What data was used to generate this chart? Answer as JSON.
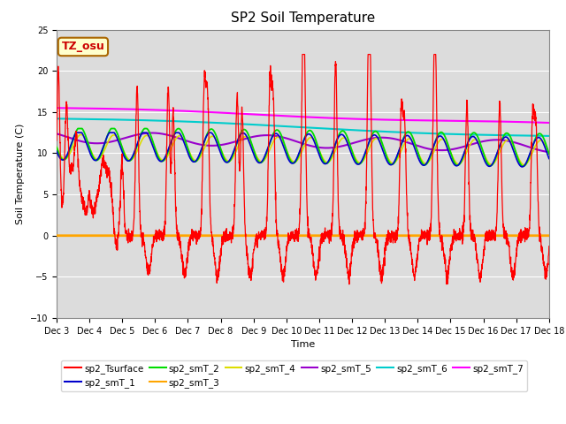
{
  "title": "SP2 Soil Temperature",
  "xlabel": "Time",
  "ylabel": "Soil Temperature (C)",
  "ylim": [
    -10,
    25
  ],
  "xlim": [
    0,
    15
  ],
  "xtick_labels": [
    "Dec 3",
    "Dec 4",
    "Dec 5",
    "Dec 6",
    "Dec 7",
    "Dec 8",
    "Dec 9",
    "Dec 10",
    "Dec 11",
    "Dec 12",
    "Dec 13",
    "Dec 14",
    "Dec 15",
    "Dec 16",
    "Dec 17",
    "Dec 18"
  ],
  "ytick_vals": [
    -10,
    -5,
    0,
    5,
    10,
    15,
    20,
    25
  ],
  "annotation_text": "TZ_osu",
  "annotation_color": "#cc0000",
  "annotation_bg": "#ffffcc",
  "annotation_edge": "#aa6600",
  "colors": {
    "sp2_Tsurface": "#ff0000",
    "sp2_smT_1": "#0000cc",
    "sp2_smT_2": "#00dd00",
    "sp2_smT_3": "#ffa500",
    "sp2_smT_4": "#dddd00",
    "sp2_smT_5": "#9900cc",
    "sp2_smT_6": "#00cccc",
    "sp2_smT_7": "#ff00ff"
  },
  "plot_bg": "#dcdcdc",
  "fig_bg": "#ffffff"
}
